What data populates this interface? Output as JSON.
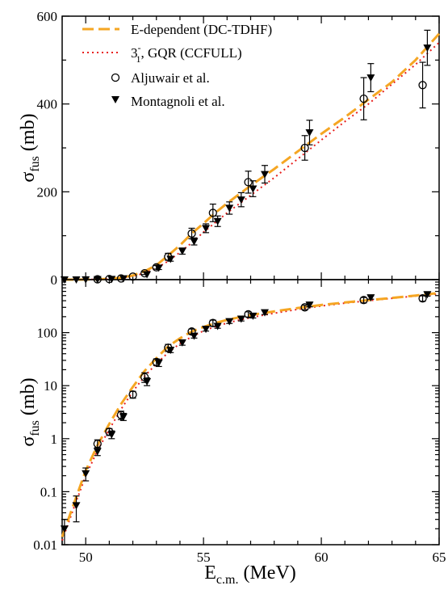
{
  "chart_data": [
    {
      "type": "scatter",
      "scale": "linear",
      "xlim": [
        49,
        65
      ],
      "ylim": [
        0,
        600
      ],
      "ylabel": "σ",
      "ylabel_sub": "fus",
      "ylabel_unit": "(mb)",
      "x_ticks": [
        50,
        55,
        60,
        65
      ],
      "y_ticks": [
        0,
        200,
        400,
        600
      ],
      "y_tick_labels": [
        "0",
        "200",
        "400",
        "600"
      ],
      "legend_position": "top-left",
      "legend": [
        {
          "key": "tdhf",
          "label": "E-dependent (DC-TDHF)"
        },
        {
          "key": "ccfull",
          "label_main": "3",
          "label_sup": "-",
          "label_sub": "1",
          "label_rest": ", GQR (CCFULL)"
        },
        {
          "key": "aljuwair",
          "label": "Aljuwair et al."
        },
        {
          "key": "montagnoli",
          "label": "Montagnoli et al."
        }
      ]
    },
    {
      "type": "scatter",
      "scale": "log",
      "xlim": [
        49,
        65
      ],
      "ylim": [
        0.01,
        1000
      ],
      "xlabel": "E",
      "xlabel_sub": "c.m.",
      "xlabel_unit": "(MeV)",
      "ylabel": "σ",
      "ylabel_sub": "fus",
      "ylabel_unit": "(mb)",
      "x_ticks": [
        50,
        55,
        60,
        65
      ],
      "x_tick_labels": [
        "50",
        "55",
        "60",
        "65"
      ],
      "y_ticks": [
        0.01,
        0.1,
        1,
        10,
        100
      ],
      "y_tick_labels": [
        "0.01",
        "0.1",
        "1",
        "10",
        "100"
      ]
    }
  ],
  "series": {
    "tdhf": {
      "name": "E-dependent (DC-TDHF)",
      "style": "dashed",
      "color": "#f5a623",
      "x": [
        49.0,
        49.5,
        50.0,
        50.5,
        51.0,
        51.5,
        52.0,
        52.5,
        53.0,
        53.5,
        54.0,
        54.5,
        55.0,
        55.5,
        56.0,
        56.5,
        57.0,
        57.5,
        58.0,
        59.0,
        60.0,
        61.0,
        62.0,
        63.0,
        64.0,
        65.0
      ],
      "y": [
        0.014,
        0.06,
        0.25,
        0.75,
        1.9,
        4.5,
        9.5,
        19,
        33,
        55,
        78,
        105,
        128,
        152,
        174,
        194,
        214,
        233,
        252,
        292,
        332,
        370,
        410,
        450,
        500,
        560
      ]
    },
    "ccfull": {
      "name": "3-1, GQR (CCFULL)",
      "style": "dotted",
      "color": "#e8201e",
      "x": [
        49.0,
        49.5,
        50.0,
        50.5,
        51.0,
        51.5,
        52.0,
        52.5,
        53.0,
        53.5,
        54.0,
        54.5,
        55.0,
        55.5,
        56.0,
        56.5,
        57.0,
        57.5,
        58.0,
        59.0,
        60.0,
        61.0,
        62.0,
        63.0,
        64.0,
        65.0
      ],
      "y": [
        0.012,
        0.05,
        0.2,
        0.6,
        1.5,
        3.6,
        7.8,
        15,
        26,
        42,
        62,
        84,
        108,
        130,
        152,
        172,
        192,
        212,
        232,
        275,
        318,
        360,
        400,
        445,
        490,
        540
      ]
    },
    "aljuwair": {
      "name": "Aljuwair et al.",
      "marker": "circle",
      "points": [
        [
          50.5,
          0.8,
          0.15
        ],
        [
          51.0,
          1.35,
          0.2
        ],
        [
          51.5,
          2.8,
          0.5
        ],
        [
          52.0,
          6.8,
          1.0
        ],
        [
          52.5,
          14.5,
          3.0
        ],
        [
          53.0,
          28,
          4.0
        ],
        [
          53.5,
          52,
          8.0
        ],
        [
          54.5,
          105,
          12
        ],
        [
          55.4,
          152,
          20
        ],
        [
          56.9,
          222,
          25
        ],
        [
          59.3,
          300,
          28
        ],
        [
          61.8,
          412,
          48
        ],
        [
          64.3,
          443,
          52
        ]
      ]
    },
    "montagnoli": {
      "name": "Montagnoli et al.",
      "marker": "triangle-down",
      "points": [
        [
          49.1,
          0.02,
          0.01
        ],
        [
          49.6,
          0.055,
          0.028
        ],
        [
          50.0,
          0.22,
          0.06
        ],
        [
          50.5,
          0.58,
          0.1
        ],
        [
          51.1,
          1.2,
          0.2
        ],
        [
          51.6,
          2.6,
          0.4
        ],
        [
          52.6,
          12,
          2.0
        ],
        [
          53.1,
          27,
          4.0
        ],
        [
          53.6,
          47,
          5.0
        ],
        [
          54.1,
          65,
          7.0
        ],
        [
          54.6,
          87,
          8.0
        ],
        [
          55.1,
          117,
          10
        ],
        [
          55.6,
          133,
          12
        ],
        [
          56.1,
          163,
          14
        ],
        [
          56.6,
          182,
          16
        ],
        [
          57.1,
          207,
          18
        ],
        [
          57.6,
          240,
          20
        ],
        [
          59.5,
          335,
          28
        ],
        [
          62.1,
          460,
          32
        ],
        [
          64.5,
          528,
          40
        ]
      ]
    }
  }
}
